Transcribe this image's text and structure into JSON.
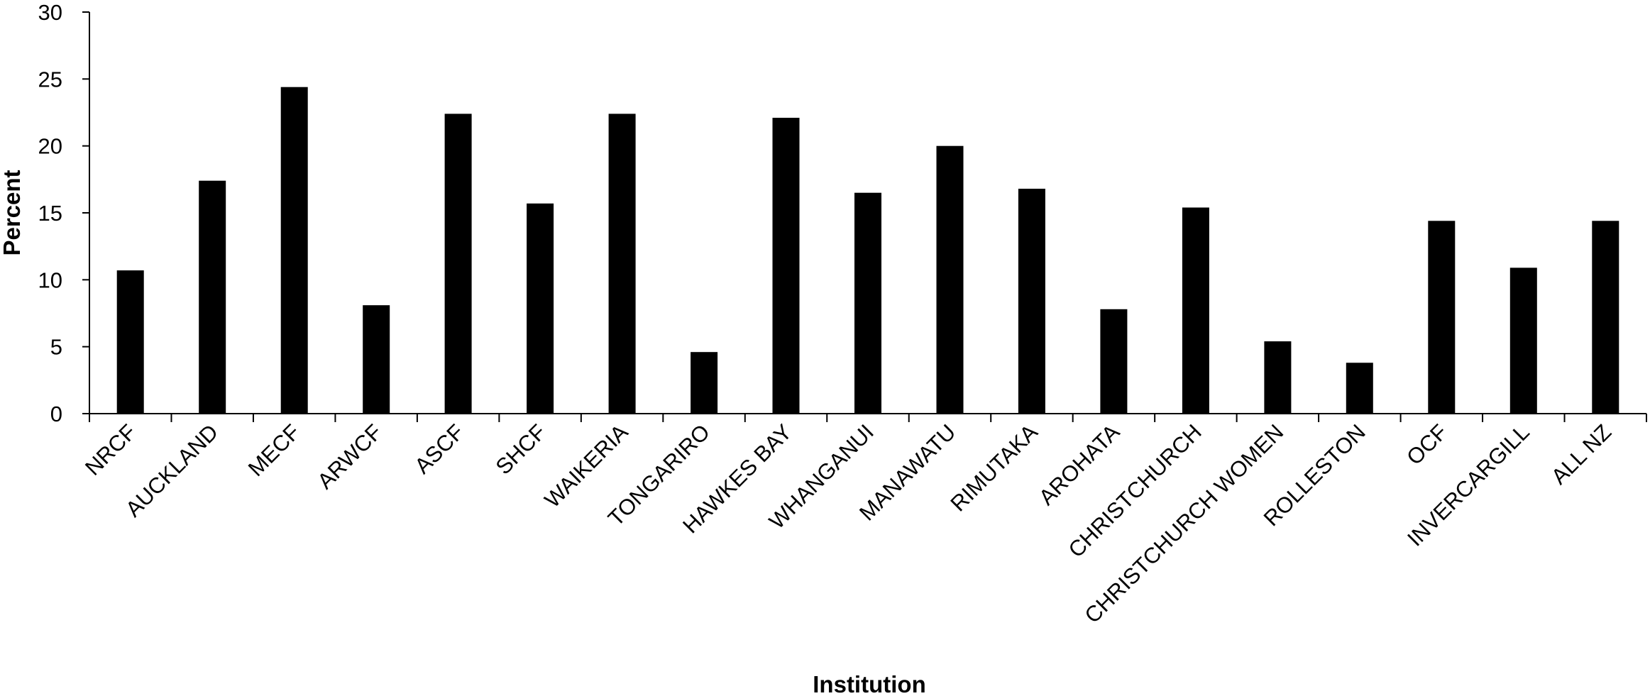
{
  "chart_data": {
    "type": "bar",
    "title": "",
    "xlabel": "Institution",
    "ylabel": "Percent",
    "ylim": [
      0,
      30
    ],
    "yticks": [
      0,
      5,
      10,
      15,
      20,
      25,
      30
    ],
    "grid": false,
    "legend": "none",
    "bar_color": "#000000",
    "categories": [
      "NRCF",
      "AUCKLAND",
      "MECF",
      "ARWCF",
      "ASCF",
      "SHCF",
      "WAIKERIA",
      "TONGARIRO",
      "HAWKES BAY",
      "WHANGANUI",
      "MANAWATU",
      "RIMUTAKA",
      "AROHATA",
      "CHRISTCHURCH",
      "CHRISTCHURCH WOMEN",
      "ROLLESTON",
      "OCF",
      "INVERCARGILL",
      "ALL NZ"
    ],
    "values": [
      10.7,
      17.4,
      24.4,
      8.1,
      22.4,
      15.7,
      22.4,
      4.6,
      22.1,
      16.5,
      20.0,
      16.8,
      7.8,
      15.4,
      5.4,
      3.8,
      14.4,
      10.9,
      14.4
    ]
  }
}
